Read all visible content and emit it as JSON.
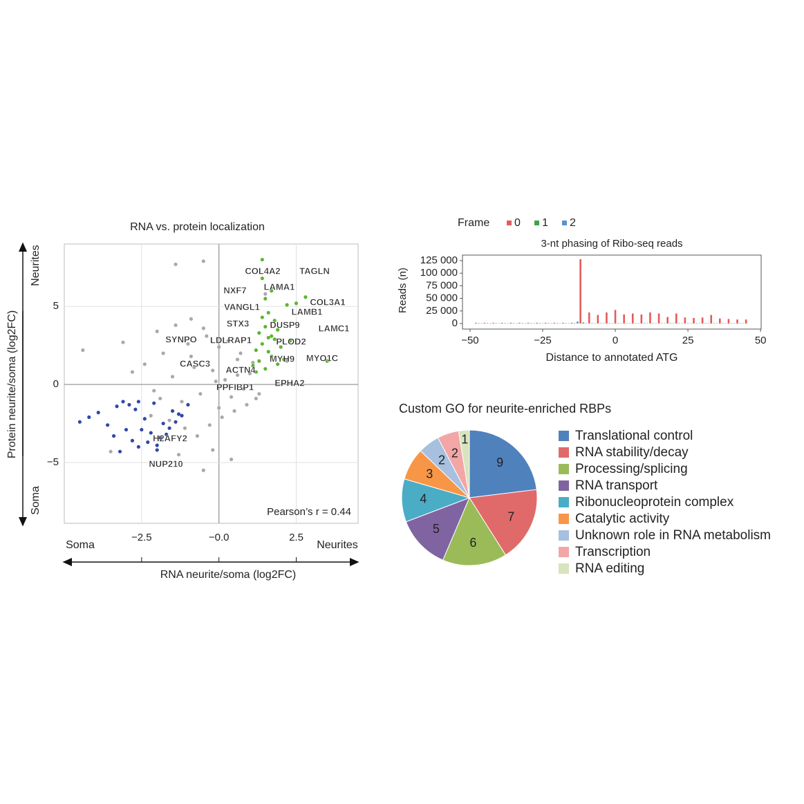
{
  "chart_data": [
    {
      "type": "scatter",
      "title": "RNA vs. protein localization",
      "x_label": "RNA neurite/soma (log2FC)",
      "y_label": "Protein neurite/soma (log2FC)",
      "x_side_labels": [
        "Soma",
        "Neurites"
      ],
      "y_side_labels": [
        "Neurites",
        "Soma"
      ],
      "note": "Pearson’s r = 0.44",
      "xlim": [
        -5,
        4.5
      ],
      "ylim": [
        -8.9,
        9
      ],
      "xticks": [
        {
          "value": -2.5,
          "label": "−2.5"
        },
        {
          "value": 0,
          "label": "−0.0"
        },
        2.5
      ],
      "yticks": [
        {
          "value": -5,
          "label": "−5"
        },
        0,
        5
      ],
      "grid": true,
      "series": [
        {
          "color": "#a9a9a9",
          "x": [
            -2.8,
            -2.4,
            -2.1,
            -1.8,
            -1.5,
            -1.2,
            -1,
            -0.8,
            -0.6,
            -0.4,
            -0.2,
            0,
            0.2,
            0.4,
            0.6,
            0.8,
            1,
            1.2,
            -1.6,
            -1.1,
            -0.7,
            -0.3,
            0.1,
            0.5,
            0.9,
            -2,
            -1.4,
            -0.9,
            -0.5,
            0,
            0.3,
            0.7,
            1.1,
            -0.2,
            0.4,
            -1.3,
            -0.5,
            -4.4,
            -3.1,
            -3.5,
            -1.4,
            -0.5,
            1.5,
            -1.9,
            2.2,
            -2.2,
            -0.1,
            0.6,
            -0.9,
            1.3
          ],
          "values": [
            0.8,
            1.3,
            -0.4,
            2,
            0.5,
            -1.1,
            2.6,
            1.1,
            -0.6,
            3.1,
            0.9,
            -1.5,
            0.3,
            -0.8,
            1.6,
            -0.3,
            0.7,
            -0.9,
            -2.3,
            -2.8,
            -3.3,
            -2.6,
            -2.1,
            -1.7,
            -1.3,
            3.4,
            3.8,
            4.2,
            3.6,
            2.4,
            2.8,
            2,
            1.4,
            -4.2,
            -4.8,
            -4.5,
            -5.5,
            2.2,
            2.7,
            -4.3,
            7.7,
            7.9,
            5.8,
            -0.9,
            1.5,
            -2,
            0.2,
            0.6,
            1.8,
            -0.6
          ]
        },
        {
          "color": "#5cb531",
          "x": [
            1.1,
            1.3,
            1.5,
            1.7,
            1.9,
            2.1,
            1.2,
            1.4,
            1.6,
            1.8,
            2,
            1.3,
            1.5,
            1.7,
            1.9,
            2.3,
            1.4,
            1.6,
            1.8,
            2.2,
            1.5,
            1.7,
            2.5,
            1.4,
            1.9,
            3.5,
            1.4,
            2.8,
            1.2,
            1.6
          ],
          "values": [
            1.2,
            1.5,
            1,
            1.8,
            1.3,
            1.6,
            2.2,
            2.6,
            2.1,
            2.9,
            2.4,
            3.3,
            3.7,
            3.1,
            3.5,
            2.8,
            4.3,
            4.6,
            4.1,
            5.1,
            5.5,
            6,
            5.2,
            6.8,
            6.3,
            1.5,
            8,
            5.6,
            0.8,
            3
          ]
        },
        {
          "color": "#3048a8",
          "x": [
            -4.5,
            -4.2,
            -3.9,
            -3.6,
            -3.3,
            -3,
            -2.7,
            -2.4,
            -2.1,
            -1.8,
            -1.5,
            -1.2,
            -1,
            -3.4,
            -3.1,
            -2.8,
            -2.5,
            -2.2,
            -1.9,
            -1.6,
            -1.3,
            -2.9,
            -2.6,
            -2.3,
            -2,
            -1.7,
            -3.2,
            -2,
            -1.4,
            -2.6
          ],
          "values": [
            -2.4,
            -2.1,
            -1.8,
            -2.6,
            -1.4,
            -2.9,
            -1.6,
            -2.2,
            -1.2,
            -2.5,
            -1.7,
            -2,
            -1.3,
            -3.3,
            -1.1,
            -3.6,
            -2.9,
            -3.1,
            -3.4,
            -2.8,
            -1.9,
            -1.3,
            -4,
            -3.7,
            -4.2,
            -3.2,
            -4.3,
            -3.9,
            -2.4,
            -1.1
          ]
        }
      ],
      "labels": [
        "COL4A2",
        "TAGLN",
        "LAMA1",
        "NXF7",
        "COL3A1",
        "VANGL1",
        "LAMB1",
        "LAMC1",
        "STX3",
        "DUSP9",
        "SYNPO",
        "LDLRAP1",
        "PLOD2",
        "CASC3",
        "MYH9",
        "MYO1C",
        "ACTN4",
        "PPFIBP1",
        "EPHA2",
        "H2AFY2",
        "NUP210"
      ]
    },
    {
      "type": "bar",
      "title": "3-nt phasing of Ribo-seq reads",
      "legend_title": "Frame",
      "x_label": "Distance to annotated ATG",
      "y_label": "Reads (n)",
      "xlim": [
        -52.6,
        50.2
      ],
      "ylim": [
        -11000,
        136000
      ],
      "xticks": [
        {
          "value": -50,
          "label": "−50"
        },
        {
          "value": -25,
          "label": "−25"
        },
        0,
        25,
        50
      ],
      "yticks": [
        0,
        {
          "value": 25000,
          "label": "25 000"
        },
        {
          "value": 50000,
          "label": "50 000"
        },
        {
          "value": 75000,
          "label": "75 000"
        },
        {
          "value": 100000,
          "label": "100 000"
        },
        {
          "value": 125000,
          "label": "125 000"
        }
      ],
      "series": [
        {
          "name": "0",
          "color": "#e45a5a",
          "x": [
            -48,
            -45,
            -42,
            -39,
            -36,
            -33,
            -30,
            -27,
            -24,
            -21,
            -18,
            -15,
            -12,
            -9,
            -6,
            -3,
            0,
            3,
            6,
            9,
            12,
            15,
            18,
            21,
            24,
            27,
            30,
            33,
            36,
            39,
            42,
            45
          ],
          "values": [
            1500,
            1500,
            1500,
            1500,
            1500,
            1500,
            1500,
            1500,
            1500,
            1500,
            1500,
            1500,
            128000,
            22000,
            17000,
            22000,
            27000,
            18000,
            20000,
            18000,
            22000,
            20000,
            13000,
            20000,
            12000,
            11000,
            12000,
            17000,
            10000,
            9000,
            8000,
            8000
          ]
        },
        {
          "name": "1",
          "color": "#3aa64a",
          "x": [
            -47,
            -44,
            -41,
            -38,
            -35,
            -32,
            -29,
            -26,
            -23,
            -20,
            -17,
            -14,
            -11,
            -8,
            -5,
            -2,
            1,
            4,
            7,
            10,
            13,
            16,
            19,
            22,
            25,
            28,
            31,
            34,
            37,
            40,
            43
          ],
          "values": [
            700,
            700,
            700,
            700,
            700,
            700,
            700,
            700,
            700,
            700,
            700,
            700,
            2000,
            700,
            700,
            700,
            700,
            700,
            700,
            700,
            700,
            700,
            700,
            700,
            700,
            700,
            700,
            700,
            700,
            700,
            700
          ]
        },
        {
          "name": "2",
          "color": "#5b8fd0",
          "x": [
            -46,
            -43,
            -40,
            -37,
            -34,
            -31,
            -28,
            -25,
            -22,
            -19,
            -16,
            -13,
            -10,
            -7,
            -4,
            -1,
            2,
            5,
            8,
            11,
            14,
            17,
            20,
            23,
            26,
            29,
            32,
            35,
            38,
            41,
            44
          ],
          "values": [
            600,
            600,
            600,
            600,
            600,
            600,
            600,
            600,
            600,
            600,
            600,
            4000,
            600,
            600,
            600,
            600,
            600,
            600,
            600,
            600,
            600,
            600,
            600,
            600,
            600,
            600,
            600,
            600,
            600,
            600,
            600
          ]
        }
      ]
    },
    {
      "type": "pie",
      "title": "Custom GO for neurite-enriched RBPs",
      "categories": [
        "Translational control",
        "RNA stability/decay",
        "Processing/splicing",
        "RNA transport",
        "Ribonucleoprotein complex",
        "Catalytic activity",
        "Unknown role in RNA metabolism",
        "Transcription",
        "RNA editing"
      ],
      "values": [
        9,
        7,
        6,
        5,
        4,
        3,
        2,
        2,
        1
      ],
      "colors": [
        "#4f81bd",
        "#e06a6a",
        "#9bbb59",
        "#8064a2",
        "#4bacc6",
        "#f79646",
        "#a7c0e0",
        "#f2a6a6",
        "#d7e4bd"
      ]
    }
  ]
}
